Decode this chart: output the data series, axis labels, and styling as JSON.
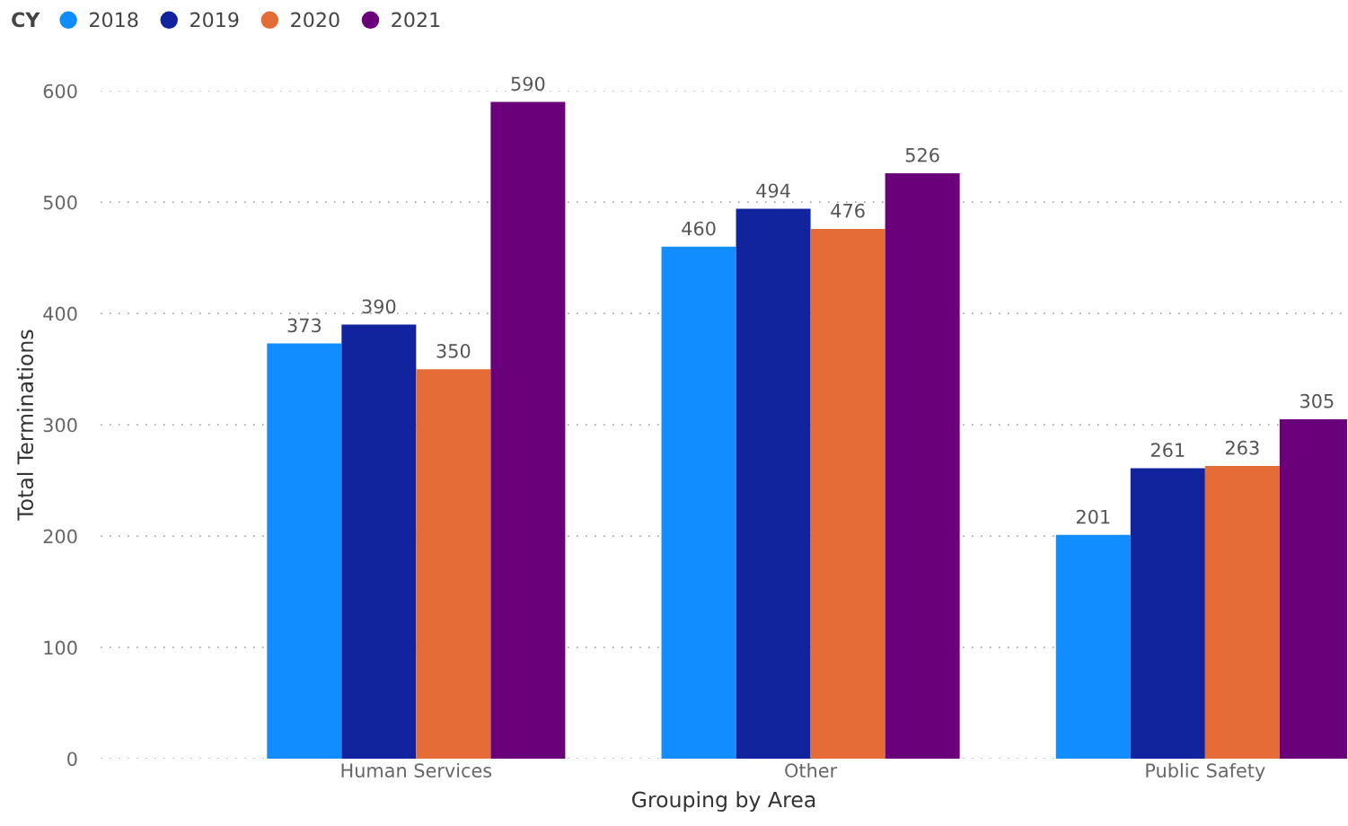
{
  "chart_data": {
    "type": "bar",
    "xlabel": "Grouping by Area",
    "ylabel": "Total Terminations",
    "legend_title": "CY",
    "categories": [
      "Human Services",
      "Other",
      "Public Safety"
    ],
    "series": [
      {
        "name": "2018",
        "color": "#118dff",
        "values": [
          373,
          460,
          201
        ]
      },
      {
        "name": "2019",
        "color": "#12239e",
        "values": [
          390,
          494,
          261
        ]
      },
      {
        "name": "2020",
        "color": "#e66c37",
        "values": [
          350,
          476,
          263
        ]
      },
      {
        "name": "2021",
        "color": "#6b007b",
        "values": [
          590,
          526,
          305
        ]
      }
    ],
    "ylim": [
      0,
      600
    ],
    "yticks": [
      0,
      100,
      200,
      300,
      400,
      500,
      600
    ],
    "grid": "y",
    "legend": "top left",
    "data_labels": true
  }
}
